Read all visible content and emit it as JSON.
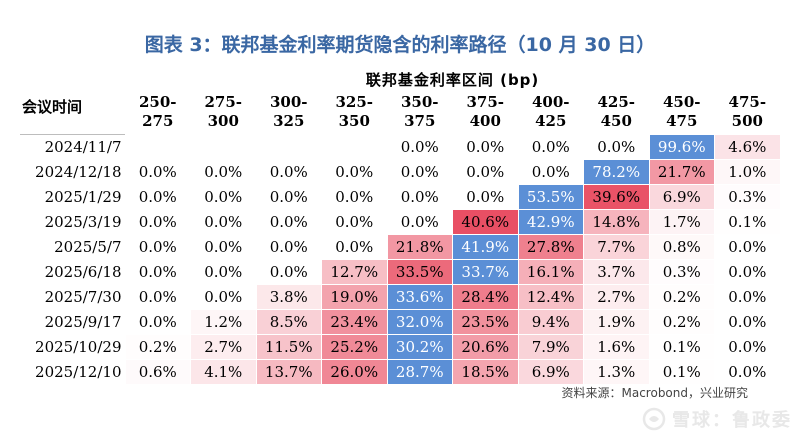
{
  "title": "图表 3：联邦基金利率期货隐含的利率路径（10 月 30 日）",
  "source": "资料来源：Macrobond，兴业研究",
  "watermark": "雪球：鲁政委",
  "chart_data": {
    "type": "table",
    "range_header": "联邦基金利率区间 (bp)",
    "row_header": "会议时间",
    "columns": [
      [
        "250-",
        "275"
      ],
      [
        "275-",
        "300"
      ],
      [
        "300-",
        "325"
      ],
      [
        "325-",
        "350"
      ],
      [
        "350-",
        "375"
      ],
      [
        "375-",
        "400"
      ],
      [
        "400-",
        "425"
      ],
      [
        "425-",
        "450"
      ],
      [
        "450-",
        "475"
      ],
      [
        "475-",
        "500"
      ]
    ],
    "rows": [
      {
        "date": "2024/11/7",
        "values": [
          null,
          null,
          null,
          null,
          0.0,
          0.0,
          0.0,
          0.0,
          99.6,
          4.6
        ]
      },
      {
        "date": "2024/12/18",
        "values": [
          0.0,
          0.0,
          0.0,
          0.0,
          0.0,
          0.0,
          0.0,
          78.2,
          21.7,
          1.0
        ]
      },
      {
        "date": "2025/1/29",
        "values": [
          0.0,
          0.0,
          0.0,
          0.0,
          0.0,
          0.0,
          53.5,
          39.6,
          6.9,
          0.3
        ]
      },
      {
        "date": "2025/3/19",
        "values": [
          0.0,
          0.0,
          0.0,
          0.0,
          0.0,
          40.6,
          42.9,
          14.8,
          1.7,
          0.1
        ]
      },
      {
        "date": "2025/5/7",
        "values": [
          0.0,
          0.0,
          0.0,
          0.0,
          21.8,
          41.9,
          27.8,
          7.7,
          0.8,
          0.0
        ]
      },
      {
        "date": "2025/6/18",
        "values": [
          0.0,
          0.0,
          0.0,
          12.7,
          33.5,
          33.7,
          16.1,
          3.7,
          0.3,
          0.0
        ]
      },
      {
        "date": "2025/7/30",
        "values": [
          0.0,
          0.0,
          3.8,
          19.0,
          33.6,
          28.4,
          12.4,
          2.7,
          0.2,
          0.0
        ]
      },
      {
        "date": "2025/9/17",
        "values": [
          0.0,
          1.2,
          8.5,
          23.4,
          32.0,
          23.5,
          9.4,
          1.9,
          0.2,
          0.0
        ]
      },
      {
        "date": "2025/10/29",
        "values": [
          0.2,
          2.7,
          11.5,
          25.2,
          30.2,
          20.6,
          7.9,
          1.6,
          0.1,
          0.0
        ]
      },
      {
        "date": "2025/12/10",
        "values": [
          0.6,
          4.1,
          13.7,
          26.0,
          28.7,
          18.5,
          6.9,
          1.3,
          0.1,
          0.0
        ]
      }
    ],
    "value_suffix": "%",
    "max_cell_color": "#5b8fd6",
    "heat_color": "#e84a5f"
  }
}
